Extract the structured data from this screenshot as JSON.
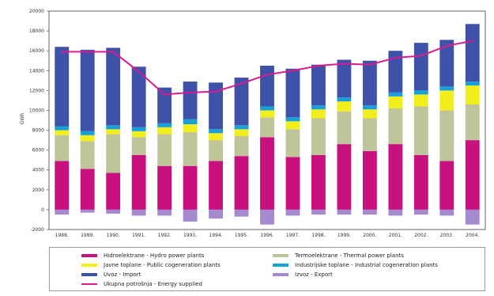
{
  "chart_data": {
    "type": "bar",
    "stacked": true,
    "ylabel": "GWh",
    "ylim": [
      -2000,
      20000
    ],
    "yticks": [
      -2000,
      0,
      2000,
      4000,
      6000,
      8000,
      10000,
      12000,
      14000,
      16000,
      18000,
      20000
    ],
    "categories": [
      "1988.",
      "1989.",
      "1990.",
      "1991.",
      "1992.",
      "1993.",
      "1994.",
      "1995.",
      "1996.",
      "1997.",
      "1998.",
      "1999.",
      "2000.",
      "2001.",
      "2002.",
      "2003.",
      "2004."
    ],
    "series": [
      {
        "name": "Hidroelektrane - Hydro power plants",
        "color": "#c8107f",
        "values": [
          4900,
          4100,
          3700,
          5500,
          4400,
          4400,
          4900,
          5400,
          7300,
          5300,
          5500,
          6600,
          5900,
          6600,
          5500,
          4900,
          7000
        ]
      },
      {
        "name": "Termoelektrane - Thermal power plants",
        "color": "#bfc49a",
        "values": [
          2600,
          2800,
          3900,
          1800,
          3200,
          3400,
          2100,
          2000,
          2000,
          2800,
          3700,
          3300,
          3300,
          3600,
          4900,
          5100,
          3600
        ]
      },
      {
        "name": "Javne toplane - Public cogeneration plants",
        "color": "#f2ee1c",
        "values": [
          500,
          600,
          500,
          600,
          700,
          800,
          700,
          700,
          700,
          800,
          900,
          1000,
          900,
          1200,
          1200,
          2000,
          1900
        ]
      },
      {
        "name": "Industrijske toplane - Industrial cogeneration plants",
        "color": "#1aa0d8",
        "values": [
          400,
          400,
          400,
          400,
          400,
          500,
          400,
          400,
          400,
          400,
          400,
          400,
          400,
          400,
          400,
          400,
          400
        ]
      },
      {
        "name": "Uvoz - Import",
        "color": "#3d52a8",
        "values": [
          8000,
          8200,
          7800,
          6100,
          3600,
          3800,
          4700,
          4800,
          4100,
          4900,
          4100,
          3800,
          4500,
          4200,
          4800,
          4700,
          5800
        ]
      },
      {
        "name": "Izvoz - Export",
        "color": "#a58ad0",
        "values": [
          -500,
          -300,
          -400,
          -600,
          -600,
          -1200,
          -900,
          -700,
          -1500,
          -600,
          -500,
          -500,
          -500,
          -600,
          -500,
          -600,
          -1500
        ]
      }
    ],
    "line": {
      "name": "Ukupna potrošnja - Energy supplied",
      "color": "#d81b8f",
      "values": [
        15900,
        15900,
        15900,
        13900,
        11600,
        11800,
        11900,
        12700,
        13600,
        14000,
        14500,
        14700,
        14600,
        15300,
        15500,
        16500,
        17000
      ]
    },
    "legend": [
      {
        "name": "Hidroelektrane - Hydro power plants",
        "color": "#c8107f",
        "kind": "bar"
      },
      {
        "name": "Termoelektrane - Thermal power plants",
        "color": "#bfc49a",
        "kind": "bar"
      },
      {
        "name": "Javne toplane - Public cogeneration plants",
        "color": "#f2ee1c",
        "kind": "bar"
      },
      {
        "name": "Industrijske toplane - Industrial cogeneration plants",
        "color": "#1aa0d8",
        "kind": "bar"
      },
      {
        "name": "Uvoz - Import",
        "color": "#3d52a8",
        "kind": "bar"
      },
      {
        "name": "Izvoz - Export",
        "color": "#a58ad0",
        "kind": "bar"
      },
      {
        "name": "Ukupna potrošnja - Energy supplied",
        "color": "#d81b8f",
        "kind": "line"
      }
    ],
    "legend_position": "bottom",
    "grid": false
  }
}
